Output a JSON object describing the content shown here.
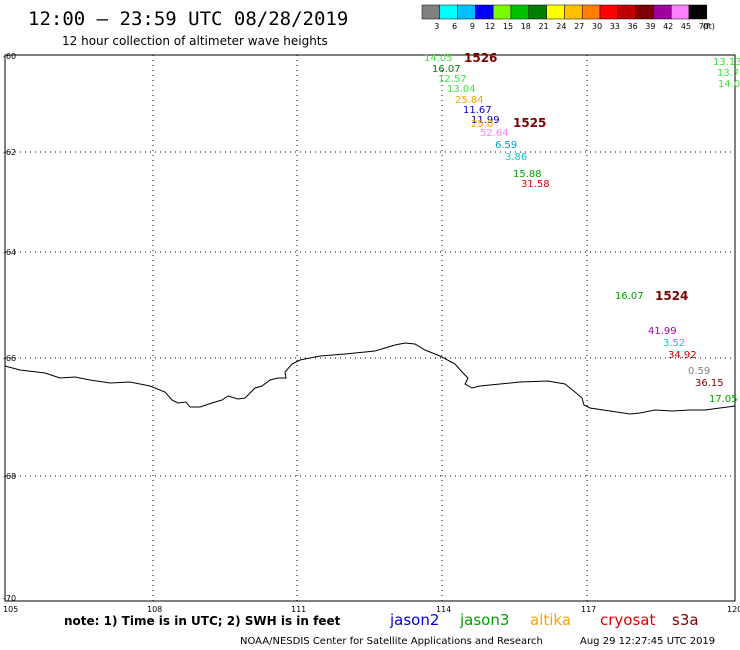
{
  "header": {
    "title": "12:00 – 23:59 UTC 08/28/2019",
    "subtitle": "12 hour collection of altimeter wave heights"
  },
  "legend": {
    "unit": "(ft)",
    "bins": [
      {
        "label": "3",
        "color": "#808080"
      },
      {
        "label": "6",
        "color": "#00ffff"
      },
      {
        "label": "9",
        "color": "#00bfff"
      },
      {
        "label": "12",
        "color": "#0000ff"
      },
      {
        "label": "15",
        "color": "#7cfc00"
      },
      {
        "label": "18",
        "color": "#00c000"
      },
      {
        "label": "21",
        "color": "#008000"
      },
      {
        "label": "24",
        "color": "#ffff00"
      },
      {
        "label": "27",
        "color": "#ffc000"
      },
      {
        "label": "30",
        "color": "#ff8000"
      },
      {
        "label": "33",
        "color": "#ff0000"
      },
      {
        "label": "36",
        "color": "#c00000"
      },
      {
        "label": "39",
        "color": "#800000"
      },
      {
        "label": "42",
        "color": "#a000a0"
      },
      {
        "label": "45",
        "color": "#ff80ff"
      },
      {
        "label": "70",
        "color": "#000000"
      }
    ]
  },
  "axes": {
    "lat_labels": [
      "-60",
      "-62",
      "-64",
      "-66",
      "-68",
      "-70"
    ],
    "lon_labels": [
      "105",
      "108",
      "111",
      "114",
      "117",
      "120"
    ]
  },
  "tracks": [
    "1526",
    "1525",
    "1524"
  ],
  "observations": [
    {
      "text": "14.05",
      "color": "#40e040"
    },
    {
      "text": "16.07",
      "color": "#008000"
    },
    {
      "text": "12.57",
      "color": "#40e040"
    },
    {
      "text": "13.04",
      "color": "#40e040"
    },
    {
      "text": "25.84",
      "color": "#ffa000"
    },
    {
      "text": "11.67",
      "color": "#0000c0"
    },
    {
      "text": "11.99",
      "color": "#0000c0"
    },
    {
      "text": "25.0",
      "color": "#ffa000"
    },
    {
      "text": "52.64",
      "color": "#ff80ff"
    },
    {
      "text": "6.59",
      "color": "#00a0d0"
    },
    {
      "text": "3.86",
      "color": "#00d0d0"
    },
    {
      "text": "15.88",
      "color": "#00a000"
    },
    {
      "text": "31.58",
      "color": "#e00000"
    },
    {
      "text": "16.07",
      "color": "#00a000"
    },
    {
      "text": "41.99",
      "color": "#a000a0"
    },
    {
      "text": "3.52",
      "color": "#00d0d0"
    },
    {
      "text": "34.92",
      "color": "#c00000"
    },
    {
      "text": "0.59",
      "color": "#808080"
    },
    {
      "text": "36.15",
      "color": "#800000"
    },
    {
      "text": "17.05",
      "color": "#00a000"
    },
    {
      "text": "13.13",
      "color": "#40e040"
    },
    {
      "text": "13.7",
      "color": "#40e040"
    },
    {
      "text": "14.0",
      "color": "#40e040"
    }
  ],
  "note": "note:  1) Time is in UTC;  2) SWH is in feet",
  "satellites": [
    {
      "name": "jason2",
      "color": "#0000e0"
    },
    {
      "name": "jason3",
      "color": "#00a000"
    },
    {
      "name": "altika",
      "color": "#ffa000"
    },
    {
      "name": "cryosat",
      "color": "#e00000"
    },
    {
      "name": "s3a",
      "color": "#800000"
    }
  ],
  "footer": {
    "credit": "NOAA/NESDIS Center for Satellite Applications and Research",
    "timestamp": "Aug 29 12:27:45 UTC 2019"
  }
}
